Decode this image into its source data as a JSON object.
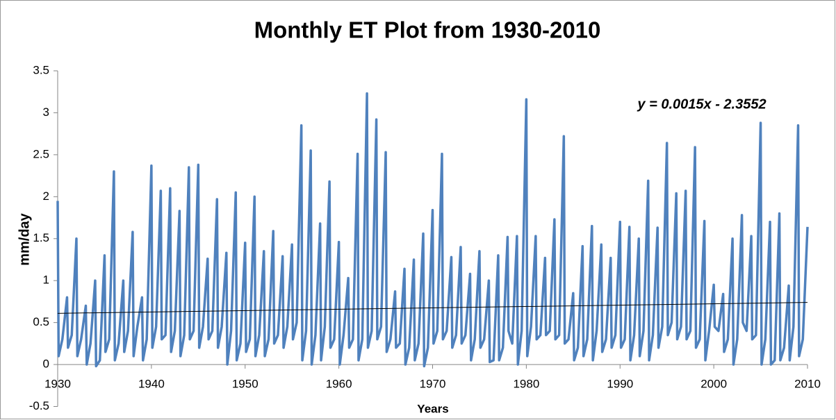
{
  "chart_data": {
    "type": "line",
    "title": "Monthly ET Plot from 1930-2010",
    "x_label": "Years",
    "y_label": "mm/day",
    "annotation": "y = 0.0015x - 2.3552",
    "xlim": [
      1930,
      2010
    ],
    "xticks": [
      1930,
      1940,
      1950,
      1960,
      1970,
      1980,
      1990,
      2000,
      2010
    ],
    "ylim": [
      -0.5,
      3.5
    ],
    "yticks": [
      -0.5,
      0,
      0.5,
      1,
      1.5,
      2,
      2.5,
      3,
      3.5
    ],
    "grid": false,
    "series": [
      {
        "color": "#4f81bd",
        "x": [
          1930,
          1930.1,
          1930.5,
          1931,
          1931.1,
          1931.5,
          1932,
          1932.1,
          1932.5,
          1933,
          1933.1,
          1933.5,
          1934,
          1934.1,
          1934.5,
          1935,
          1935.1,
          1935.5,
          1936,
          1936.1,
          1936.5,
          1937,
          1937.1,
          1937.5,
          1938,
          1938.1,
          1938.5,
          1939,
          1939.1,
          1939.5,
          1940,
          1940.1,
          1940.5,
          1941,
          1941.1,
          1941.5,
          1942,
          1942.1,
          1942.5,
          1943,
          1943.1,
          1943.5,
          1944,
          1944.1,
          1944.5,
          1945,
          1945.1,
          1945.5,
          1946,
          1946.1,
          1946.5,
          1947,
          1947.1,
          1947.5,
          1948,
          1948.1,
          1948.5,
          1949,
          1949.1,
          1949.5,
          1950,
          1950.1,
          1950.5,
          1951,
          1951.1,
          1951.5,
          1952,
          1952.1,
          1952.5,
          1953,
          1953.1,
          1953.5,
          1954,
          1954.1,
          1954.5,
          1955,
          1955.1,
          1955.5,
          1956,
          1956.1,
          1956.5,
          1957,
          1957.1,
          1957.5,
          1958,
          1958.1,
          1958.5,
          1959,
          1959.1,
          1959.5,
          1960,
          1960.1,
          1960.5,
          1961,
          1961.1,
          1961.5,
          1962,
          1962.1,
          1962.5,
          1963,
          1963.1,
          1963.5,
          1964,
          1964.1,
          1964.5,
          1965,
          1965.1,
          1965.5,
          1966,
          1966.1,
          1966.5,
          1967,
          1967.1,
          1967.5,
          1968,
          1968.1,
          1968.5,
          1969,
          1969.1,
          1969.5,
          1970,
          1970.1,
          1970.5,
          1971,
          1971.1,
          1971.5,
          1972,
          1972.1,
          1972.5,
          1973,
          1973.1,
          1973.5,
          1974,
          1974.1,
          1974.5,
          1975,
          1975.1,
          1975.5,
          1976,
          1976.1,
          1976.5,
          1977,
          1977.1,
          1977.5,
          1978,
          1978.1,
          1978.5,
          1979,
          1979.1,
          1979.5,
          1980,
          1980.1,
          1980.5,
          1981,
          1981.1,
          1981.5,
          1982,
          1982.1,
          1982.5,
          1983,
          1983.1,
          1983.5,
          1984,
          1984.1,
          1984.5,
          1985,
          1985.1,
          1985.5,
          1986,
          1986.1,
          1986.5,
          1987,
          1987.1,
          1987.5,
          1988,
          1988.1,
          1988.5,
          1989,
          1989.1,
          1989.5,
          1990,
          1990.1,
          1990.5,
          1991,
          1991.1,
          1991.5,
          1992,
          1992.1,
          1992.5,
          1993,
          1993.1,
          1993.5,
          1994,
          1994.1,
          1994.5,
          1995,
          1995.1,
          1995.5,
          1996,
          1996.1,
          1996.5,
          1997,
          1997.1,
          1997.5,
          1998,
          1998.1,
          1998.5,
          1999,
          1999.1,
          1999.5,
          2000,
          2000.1,
          2000.5,
          2001,
          2001.1,
          2001.5,
          2002,
          2002.1,
          2002.5,
          2003,
          2003.1,
          2003.5,
          2004,
          2004.1,
          2004.5,
          2005,
          2005.1,
          2005.5,
          2006,
          2006.1,
          2006.5,
          2007,
          2007.1,
          2007.5,
          2008,
          2008.1,
          2008.5,
          2009,
          2009.1,
          2009.5,
          2010
        ],
        "values": [
          1.95,
          0.1,
          0.3,
          0.8,
          0.2,
          0.35,
          1.5,
          0.1,
          0.3,
          0.7,
          0.0,
          0.25,
          1.0,
          -0.02,
          0.05,
          1.3,
          0.15,
          0.3,
          2.3,
          0.05,
          0.25,
          1.0,
          0.15,
          0.4,
          1.58,
          0.1,
          0.45,
          0.8,
          0.05,
          0.3,
          2.37,
          0.2,
          0.45,
          2.07,
          0.3,
          0.35,
          2.1,
          0.15,
          0.4,
          1.83,
          0.1,
          0.35,
          2.35,
          0.3,
          0.4,
          2.38,
          0.2,
          0.45,
          1.26,
          0.3,
          0.4,
          1.97,
          0.2,
          0.45,
          1.33,
          0.0,
          0.4,
          2.05,
          0.05,
          0.25,
          1.45,
          0.15,
          0.3,
          2.0,
          0.1,
          0.35,
          1.35,
          0.1,
          0.3,
          1.59,
          0.25,
          0.35,
          1.29,
          0.2,
          0.45,
          1.43,
          0.3,
          0.5,
          2.85,
          0.05,
          0.4,
          2.55,
          0.0,
          0.35,
          1.68,
          0.05,
          0.45,
          2.18,
          0.2,
          0.3,
          1.46,
          0.0,
          0.35,
          1.03,
          0.2,
          0.3,
          2.51,
          0.05,
          0.3,
          3.23,
          0.2,
          0.4,
          2.92,
          0.3,
          0.45,
          2.53,
          0.15,
          0.3,
          0.87,
          0.2,
          0.25,
          1.14,
          0.0,
          0.2,
          1.25,
          0.05,
          0.25,
          1.56,
          -0.02,
          0.2,
          1.84,
          0.25,
          0.4,
          2.51,
          0.3,
          0.4,
          1.28,
          0.2,
          0.35,
          1.4,
          0.25,
          0.35,
          1.08,
          0.05,
          0.3,
          1.35,
          0.2,
          0.3,
          1.0,
          0.03,
          0.05,
          1.3,
          0.05,
          0.2,
          1.52,
          0.4,
          0.25,
          1.53,
          0.0,
          0.4,
          3.16,
          0.1,
          0.45,
          1.53,
          0.3,
          0.35,
          1.27,
          0.35,
          0.4,
          1.73,
          0.3,
          0.35,
          2.72,
          0.25,
          0.3,
          0.85,
          0.05,
          0.2,
          1.41,
          0.1,
          0.3,
          1.65,
          0.05,
          0.4,
          1.43,
          0.15,
          0.3,
          1.27,
          0.2,
          0.35,
          1.7,
          0.2,
          0.3,
          1.64,
          0.05,
          0.35,
          1.5,
          0.1,
          0.4,
          2.19,
          0.05,
          0.35,
          1.63,
          0.2,
          0.45,
          2.64,
          0.35,
          0.5,
          2.04,
          0.3,
          0.45,
          2.07,
          0.3,
          0.4,
          2.59,
          0.2,
          0.3,
          1.71,
          0.05,
          0.4,
          0.95,
          0.45,
          0.4,
          0.84,
          0.15,
          0.3,
          1.5,
          0.0,
          0.3,
          1.78,
          0.5,
          0.4,
          1.53,
          0.3,
          0.35,
          2.88,
          0.0,
          0.3,
          1.7,
          0.0,
          0.05,
          1.8,
          0.05,
          0.2,
          0.94,
          0.05,
          0.45,
          2.85,
          0.1,
          0.3,
          1.64
        ]
      },
      {
        "color": "#000000",
        "x": [
          1930,
          2010
        ],
        "values": [
          0.61,
          0.74
        ]
      }
    ]
  }
}
